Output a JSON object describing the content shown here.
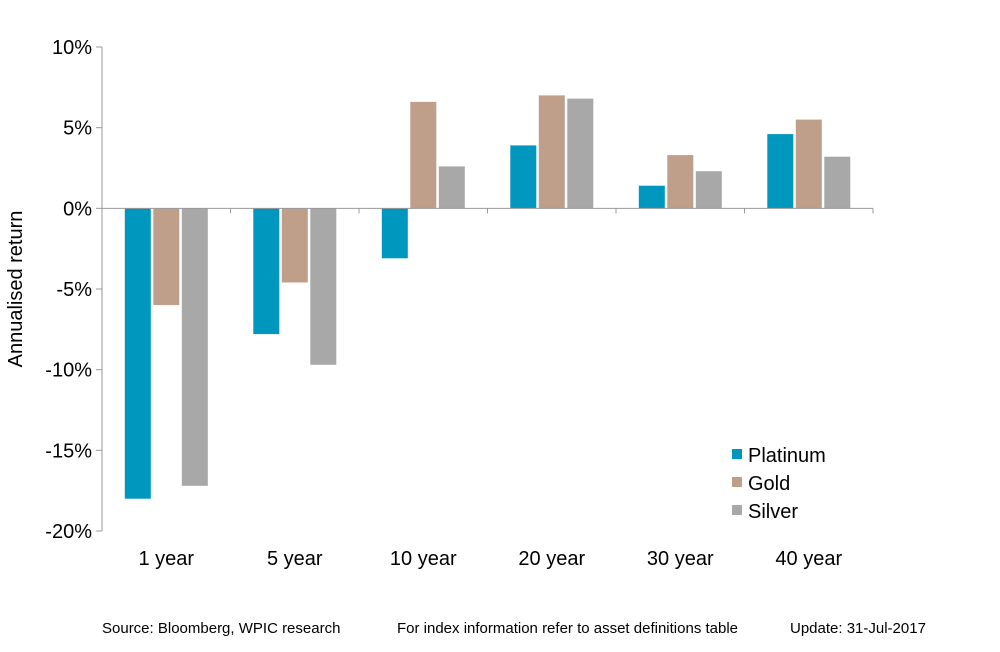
{
  "chart_data": {
    "type": "bar",
    "title": "",
    "xlabel": "",
    "ylabel": "Annualised  return",
    "ylim": [
      -20,
      10
    ],
    "yticks": [
      10,
      5,
      0,
      -5,
      -10,
      -15,
      -20
    ],
    "ytick_labels": [
      "10%",
      "5%",
      "0%",
      "-5%",
      "-10%",
      "-15%",
      "-20%"
    ],
    "categories": [
      "1 year",
      "5 year",
      "10 year",
      "20 year",
      "30 year",
      "40 year"
    ],
    "series": [
      {
        "name": "Platinum",
        "color": "#0097BE",
        "values": [
          -18.0,
          -7.8,
          -3.1,
          3.9,
          1.4,
          4.6
        ]
      },
      {
        "name": "Gold",
        "color": "#BF9F8A",
        "values": [
          -6.0,
          -4.6,
          6.6,
          7.0,
          3.3,
          5.5
        ]
      },
      {
        "name": "Silver",
        "color": "#A8A8A8",
        "values": [
          -17.2,
          -9.7,
          2.6,
          6.8,
          2.3,
          3.2
        ]
      }
    ],
    "grid": false,
    "legend_position": "bottom-right"
  },
  "footer": {
    "source": "Source: Bloomberg, WPIC research",
    "note": "For index information refer to asset definitions table",
    "update": "Update: 31-Jul-2017"
  }
}
